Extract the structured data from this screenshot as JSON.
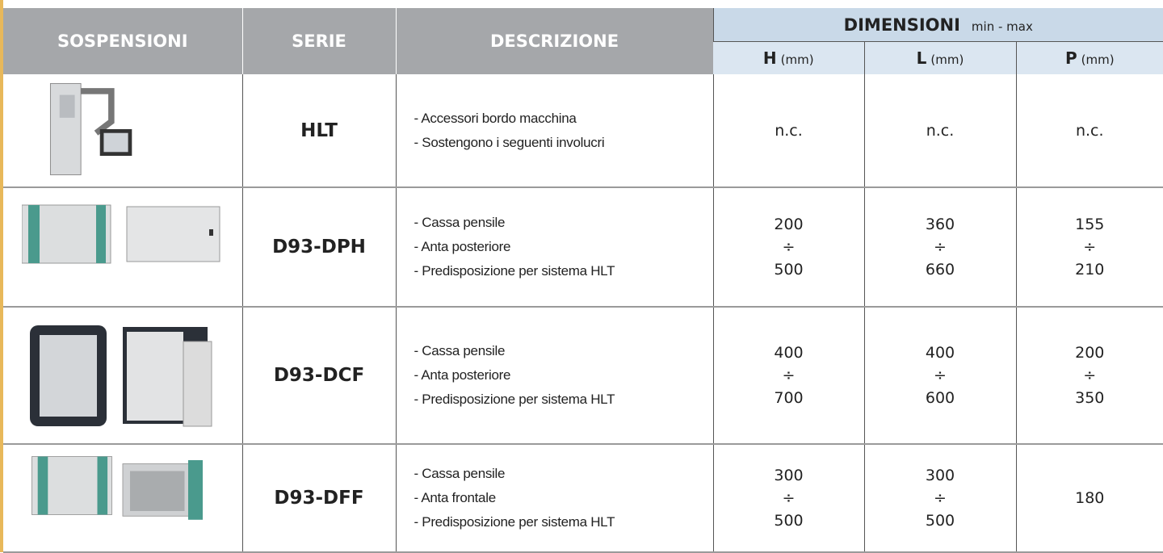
{
  "header": {
    "sospensioni": "SOSPENSIONI",
    "serie": "SERIE",
    "descrizione": "DESCRIZIONE",
    "dimensioni": "DIMENSIONI",
    "range_note": "min - max",
    "columns": [
      {
        "letter": "H",
        "unit": "(mm)"
      },
      {
        "letter": "L",
        "unit": "(mm)"
      },
      {
        "letter": "P",
        "unit": "(mm)"
      }
    ]
  },
  "rows": [
    {
      "serie": "HLT",
      "descrizione": [
        "- Accessori bordo macchina",
        "- Sostengono i seguenti involucri"
      ],
      "dims": [
        [
          "n.c."
        ],
        [
          "n.c."
        ],
        [
          "n.c."
        ]
      ]
    },
    {
      "serie": "D93-DPH",
      "descrizione": [
        "- Cassa pensile",
        "- Anta posteriore",
        "- Predisposizione per sistema HLT"
      ],
      "dims": [
        [
          "200",
          "÷",
          "500"
        ],
        [
          "360",
          "÷",
          "660"
        ],
        [
          "155",
          "÷",
          "210"
        ]
      ]
    },
    {
      "serie": "D93-DCF",
      "descrizione": [
        "- Cassa pensile",
        "- Anta posteriore",
        "- Predisposizione per sistema HLT"
      ],
      "dims": [
        [
          "400",
          "÷",
          "700"
        ],
        [
          "400",
          "÷",
          "600"
        ],
        [
          "200",
          "÷",
          "350"
        ]
      ]
    },
    {
      "serie": "D93-DFF",
      "descrizione": [
        "- Cassa pensile",
        "- Anta frontale",
        "- Predisposizione per sistema HLT"
      ],
      "dims": [
        [
          "300",
          "÷",
          "500"
        ],
        [
          "300",
          "÷",
          "500"
        ],
        [
          "180"
        ]
      ]
    }
  ]
}
